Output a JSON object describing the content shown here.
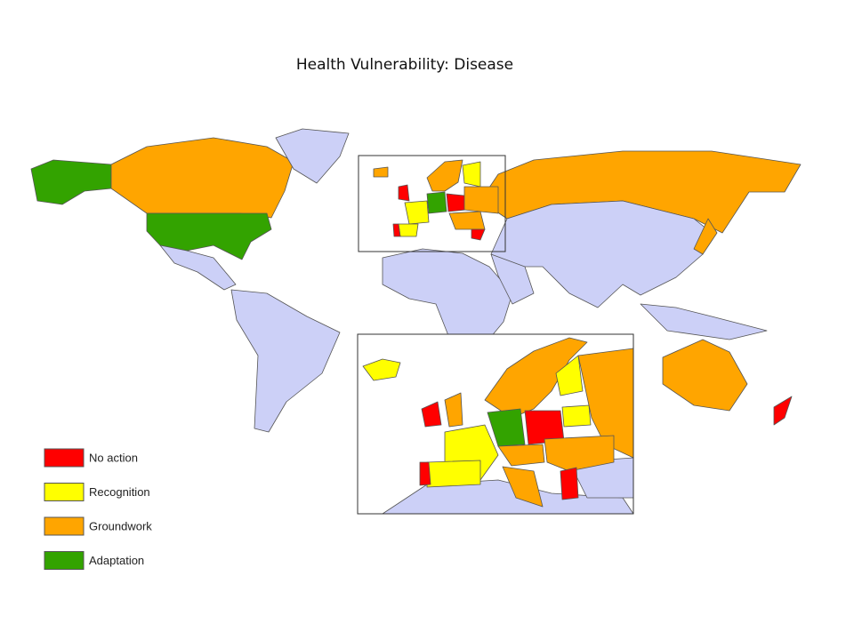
{
  "title": "Health Vulnerability: Disease",
  "legend": [
    {
      "label": "No action",
      "color": "#ff0000"
    },
    {
      "label": "Recognition",
      "color": "#ffff00"
    },
    {
      "label": "Groundwork",
      "color": "#ffa500"
    },
    {
      "label": "Adaptation",
      "color": "#33a300"
    }
  ]
}
